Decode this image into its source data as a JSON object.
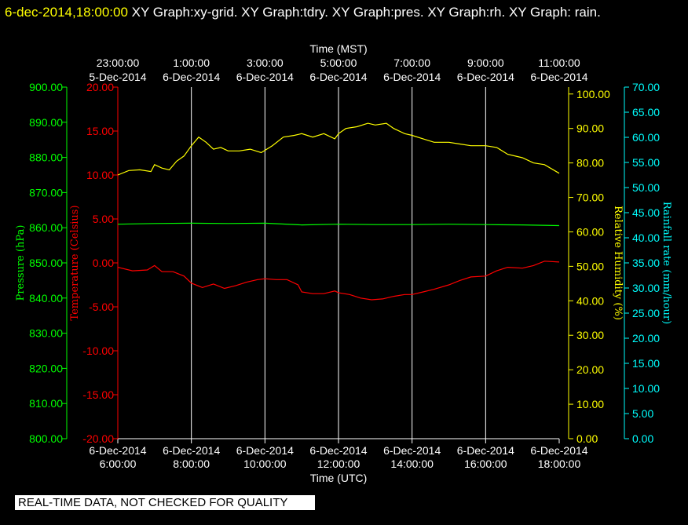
{
  "title": {
    "timestamp": "6-dec-2014,18:00:00",
    "graphs": " XY Graph:xy-grid.  XY Graph:tdry.  XY Graph:pres.  XY Graph:rh.  XY Graph: rain."
  },
  "banner": "REAL-TIME DATA, NOT CHECKED FOR QUALITY",
  "colors": {
    "background": "#000000",
    "grid": "#ffffff",
    "pressure": "#00ff00",
    "temperature": "#ff0000",
    "humidity": "#ffff00",
    "rain": "#00ffff"
  },
  "chart_data": {
    "type": "line",
    "grid": true,
    "x_bottom": {
      "label": "Time (UTC)",
      "ticks": [
        {
          "hour": 6,
          "l1": "6-Dec-2014",
          "l2": "6:00:00"
        },
        {
          "hour": 8,
          "l1": "6-Dec-2014",
          "l2": "8:00:00"
        },
        {
          "hour": 10,
          "l1": "6-Dec-2014",
          "l2": "10:00:00"
        },
        {
          "hour": 12,
          "l1": "6-Dec-2014",
          "l2": "12:00:00"
        },
        {
          "hour": 14,
          "l1": "6-Dec-2014",
          "l2": "14:00:00"
        },
        {
          "hour": 16,
          "l1": "6-Dec-2014",
          "l2": "16:00:00"
        },
        {
          "hour": 18,
          "l1": "6-Dec-2014",
          "l2": "18:00:00"
        }
      ]
    },
    "x_top": {
      "label": "Time (MST)",
      "ticks": [
        {
          "hour": 6,
          "l1": "23:00:00",
          "l2": "5-Dec-2014"
        },
        {
          "hour": 8,
          "l1": "1:00:00",
          "l2": "6-Dec-2014"
        },
        {
          "hour": 10,
          "l1": "3:00:00",
          "l2": "6-Dec-2014"
        },
        {
          "hour": 12,
          "l1": "5:00:00",
          "l2": "6-Dec-2014"
        },
        {
          "hour": 14,
          "l1": "7:00:00",
          "l2": "6-Dec-2014"
        },
        {
          "hour": 16,
          "l1": "9:00:00",
          "l2": "6-Dec-2014"
        },
        {
          "hour": 18,
          "l1": "11:00:00",
          "l2": "6-Dec-2014"
        }
      ]
    },
    "xlim": [
      6,
      18
    ],
    "axes": {
      "pressure": {
        "label": "Pressure (hPa)",
        "ylim": [
          800,
          900
        ],
        "ticks": [
          "800.00",
          "810.00",
          "820.00",
          "830.00",
          "840.00",
          "850.00",
          "860.00",
          "870.00",
          "880.00",
          "890.00",
          "900.00"
        ]
      },
      "temperature": {
        "label": "Temperature (Celsius)",
        "ylim": [
          -20,
          20
        ],
        "ticks": [
          "-20.00",
          "-15.00",
          "-10.00",
          "-5.00",
          "0.00",
          "5.00",
          "10.00",
          "15.00",
          "20.00"
        ]
      },
      "humidity": {
        "label": "Relative Humidity (%)",
        "ylim": [
          0,
          102
        ],
        "ticks": [
          "0.00",
          "10.00",
          "20.00",
          "30.00",
          "40.00",
          "50.00",
          "60.00",
          "70.00",
          "80.00",
          "90.00",
          "100.00"
        ]
      },
      "rain": {
        "label": "Rainfall rate (mm/hour)",
        "ylim": [
          0,
          70
        ],
        "ticks": [
          "0.00",
          "5.00",
          "10.00",
          "15.00",
          "20.00",
          "25.00",
          "30.00",
          "35.00",
          "40.00",
          "45.00",
          "50.00",
          "55.00",
          "60.00",
          "65.00",
          "70.00"
        ]
      }
    },
    "series": [
      {
        "axis": "humidity",
        "color": "#ffff00",
        "x": [
          6.0,
          6.3,
          6.6,
          6.9,
          7.0,
          7.2,
          7.4,
          7.6,
          7.8,
          8.0,
          8.2,
          8.4,
          8.6,
          8.8,
          9.0,
          9.3,
          9.6,
          9.9,
          10.2,
          10.5,
          10.8,
          11.0,
          11.3,
          11.6,
          11.9,
          12.0,
          12.2,
          12.5,
          12.8,
          13.0,
          13.3,
          13.5,
          13.8,
          14.0,
          14.3,
          14.6,
          15.0,
          15.3,
          15.6,
          16.0,
          16.3,
          16.6,
          17.0,
          17.3,
          17.6,
          18.0
        ],
        "y": [
          76.5,
          77.8,
          78.0,
          77.5,
          79.5,
          78.5,
          78.0,
          80.5,
          82.0,
          85.0,
          87.5,
          86.0,
          84.0,
          84.5,
          83.5,
          83.5,
          84.0,
          83.0,
          85.0,
          87.5,
          88.0,
          88.5,
          87.5,
          88.5,
          87.0,
          88.5,
          90.0,
          90.5,
          91.5,
          91.0,
          91.5,
          90.0,
          88.5,
          88.0,
          87.0,
          86.0,
          86.0,
          85.5,
          85.0,
          85.0,
          84.5,
          82.5,
          81.5,
          80.0,
          79.5,
          77.0
        ]
      },
      {
        "axis": "pressure",
        "color": "#00ff00",
        "x": [
          6.0,
          7.0,
          8.0,
          9.0,
          10.0,
          11.0,
          12.0,
          13.0,
          14.0,
          15.0,
          16.0,
          17.0,
          18.0
        ],
        "y": [
          861.0,
          861.2,
          861.3,
          861.2,
          861.3,
          860.8,
          861.0,
          860.9,
          860.9,
          861.0,
          860.9,
          860.8,
          860.6
        ]
      },
      {
        "axis": "temperature",
        "color": "#ff0000",
        "x": [
          6.0,
          6.4,
          6.8,
          7.0,
          7.2,
          7.5,
          7.8,
          8.0,
          8.3,
          8.6,
          8.9,
          9.2,
          9.5,
          9.8,
          10.0,
          10.3,
          10.6,
          10.9,
          11.0,
          11.3,
          11.6,
          11.9,
          12.0,
          12.3,
          12.6,
          12.9,
          13.2,
          13.5,
          13.8,
          14.0,
          14.3,
          14.6,
          15.0,
          15.3,
          15.6,
          16.0,
          16.3,
          16.6,
          17.0,
          17.3,
          17.6,
          18.0
        ],
        "y": [
          -0.5,
          -0.9,
          -0.8,
          -0.3,
          -1.0,
          -1.0,
          -1.5,
          -2.3,
          -2.8,
          -2.4,
          -2.9,
          -2.6,
          -2.2,
          -1.9,
          -1.8,
          -1.9,
          -1.9,
          -2.5,
          -3.3,
          -3.5,
          -3.5,
          -3.2,
          -3.4,
          -3.6,
          -4.0,
          -4.2,
          -4.1,
          -3.8,
          -3.6,
          -3.6,
          -3.3,
          -3.0,
          -2.5,
          -2.0,
          -1.6,
          -1.5,
          -0.9,
          -0.5,
          -0.6,
          -0.3,
          0.2,
          0.1
        ]
      }
    ]
  }
}
